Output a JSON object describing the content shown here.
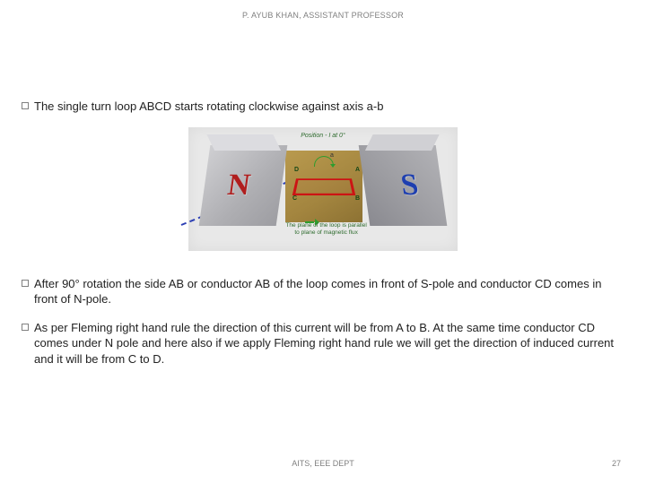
{
  "header": {
    "text": "P. AYUB KHAN, ASSISTANT PROFESSOR"
  },
  "bullets": [
    {
      "text": "The single turn loop ABCD starts rotating clockwise against axis a-b"
    },
    {
      "text": "After 90° rotation the side AB or conductor AB of the loop comes in front of S-pole and conductor CD comes in front of N-pole."
    },
    {
      "text": "As per Fleming right hand rule the direction of this current will be from A to B. At the same time conductor CD comes under N pole and here also if we apply Fleming right hand rule we will get the direction of induced current and it will be from C to D."
    }
  ],
  "diagram": {
    "background": "#e8e8e8",
    "n_pole": {
      "letter": "N",
      "letter_color": "#b01e1e",
      "fill": "#b4b4b8"
    },
    "s_pole": {
      "letter": "S",
      "letter_color": "#1e3fb0",
      "fill": "#a0a0a5"
    },
    "center_block_color": "#a3853f",
    "loop_color": "#cc1414",
    "corners": {
      "A": "A",
      "B": "B",
      "C": "C",
      "D": "D"
    },
    "axis_label_a": "a",
    "flux_line_color": "#2c3fb4",
    "top_label": "Position - I at 0°",
    "bottom_label_line1": "The plane of the loop is parallel",
    "bottom_label_line2": "to plane of magnetic flux",
    "label_color": "#2e6b2e",
    "arrow_color": "#2e9c2e"
  },
  "footer": {
    "dept": "AITS, EEE DEPT",
    "page": "27"
  }
}
